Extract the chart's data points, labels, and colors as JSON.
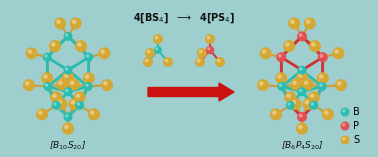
{
  "background_color": "#9ecece",
  "fig_width": 3.78,
  "fig_height": 1.57,
  "dpi": 100,
  "label_left": "[B$_{10}$S$_{20}$]",
  "label_right": "[B$_6$P$_4$S$_{20}$]",
  "arrow_color": "#cc1111",
  "text_color": "#111111",
  "legend_B_color": "#2abcb0",
  "legend_P_color": "#e05050",
  "legend_S_color": "#d4a832",
  "bond_color_B": "#2abcb0",
  "bond_color_P": "#cc3333",
  "bond_color_S": "#c8a040",
  "atom_S_color": "#d4a832",
  "atom_B_color": "#2abcb0",
  "atom_P_color": "#e05050",
  "center_top_text": "4[BS$_4$]  $\\longrightarrow$  4[PS$_4$]"
}
